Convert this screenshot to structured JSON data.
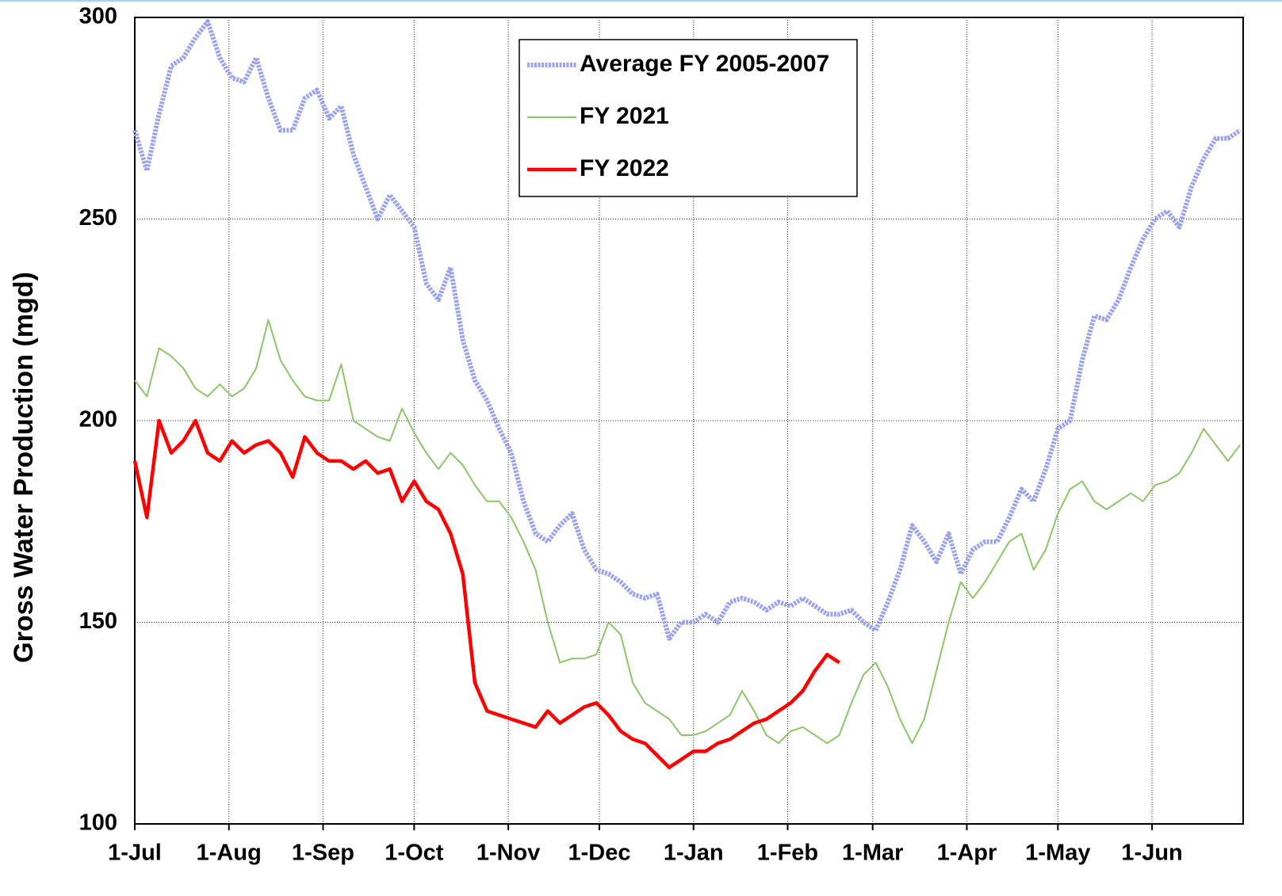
{
  "chart_data": {
    "type": "line",
    "y_label": "Gross Water Production (mgd)",
    "xlim": [
      0,
      365
    ],
    "xticks": [
      {
        "value": 0,
        "label": "1-Jul"
      },
      {
        "value": 31,
        "label": "1-Aug"
      },
      {
        "value": 62,
        "label": "1-Sep"
      },
      {
        "value": 92,
        "label": "1-Oct"
      },
      {
        "value": 123,
        "label": "1-Nov"
      },
      {
        "value": 153,
        "label": "1-Dec"
      },
      {
        "value": 184,
        "label": "1-Jan"
      },
      {
        "value": 215,
        "label": "1-Feb"
      },
      {
        "value": 243,
        "label": "1-Mar"
      },
      {
        "value": 274,
        "label": "1-Apr"
      },
      {
        "value": 304,
        "label": "1-May"
      },
      {
        "value": 335,
        "label": "1-Jun"
      }
    ],
    "ylim": [
      100,
      300
    ],
    "yticks": [
      100,
      150,
      200,
      250,
      300
    ],
    "grid": true,
    "legend": "top",
    "x": [
      0,
      4,
      8,
      12,
      16,
      20,
      24,
      28,
      32,
      36,
      40,
      44,
      48,
      52,
      56,
      60,
      64,
      68,
      72,
      76,
      80,
      84,
      88,
      92,
      96,
      100,
      104,
      108,
      112,
      116,
      120,
      124,
      128,
      132,
      136,
      140,
      144,
      148,
      152,
      156,
      160,
      164,
      168,
      172,
      176,
      180,
      184,
      188,
      192,
      196,
      200,
      204,
      208,
      212,
      216,
      220,
      224,
      228,
      232,
      236,
      240,
      244,
      248,
      252,
      256,
      260,
      264,
      268,
      272,
      276,
      280,
      284,
      288,
      292,
      296,
      300,
      304,
      308,
      312,
      316,
      320,
      324,
      328,
      332,
      336,
      340,
      344,
      348,
      352,
      356,
      360,
      364
    ],
    "series": [
      {
        "name": "Average FY 2005-2007",
        "color": "#9aa2ee",
        "values": [
          272,
          262,
          276,
          288,
          290,
          295,
          299,
          290,
          285,
          284,
          290,
          280,
          272,
          272,
          280,
          282,
          275,
          278,
          266,
          258,
          250,
          256,
          252,
          248,
          234,
          230,
          238,
          220,
          210,
          205,
          198,
          192,
          180,
          172,
          170,
          174,
          177,
          168,
          163,
          162,
          160,
          157,
          156,
          157,
          146,
          150,
          150,
          152,
          150,
          155,
          156,
          155,
          153,
          155,
          154,
          156,
          154,
          152,
          152,
          153,
          150,
          148,
          155,
          163,
          174,
          170,
          165,
          172,
          162,
          168,
          170,
          170,
          176,
          183,
          180,
          188,
          198,
          200,
          215,
          226,
          225,
          230,
          238,
          245,
          250,
          252,
          248,
          258,
          265,
          270,
          270,
          272
        ]
      },
      {
        "name": "FY 2021",
        "color": "#8ec46a",
        "values": [
          210,
          206,
          218,
          216,
          213,
          208,
          206,
          209,
          206,
          208,
          213,
          225,
          215,
          210,
          206,
          205,
          205,
          214,
          200,
          198,
          196,
          195,
          203,
          197,
          192,
          188,
          192,
          189,
          184,
          180,
          180,
          176,
          170,
          163,
          150,
          140,
          141,
          141,
          142,
          150,
          147,
          135,
          130,
          128,
          126,
          122,
          122,
          123,
          125,
          127,
          133,
          128,
          122,
          120,
          123,
          124,
          122,
          120,
          122,
          130,
          137,
          140,
          134,
          126,
          120,
          126,
          138,
          150,
          160,
          156,
          160,
          165,
          170,
          172,
          163,
          168,
          177,
          183,
          185,
          180,
          178,
          180,
          182,
          180,
          184,
          185,
          187,
          192,
          198,
          194,
          190,
          194
        ]
      },
      {
        "name": "FY 2022",
        "color": "#ff0000",
        "values": [
          190,
          176,
          200,
          192,
          195,
          200,
          192,
          190,
          195,
          192,
          194,
          195,
          192,
          186,
          196,
          192,
          190,
          190,
          188,
          190,
          187,
          188,
          180,
          185,
          180,
          178,
          172,
          162,
          135,
          128,
          127,
          126,
          125,
          124,
          128,
          125,
          127,
          129,
          130,
          127,
          123,
          121,
          120,
          117,
          114,
          116,
          118,
          118,
          120,
          121,
          123,
          125,
          126,
          128,
          130,
          133,
          138,
          142,
          140,
          null,
          null,
          null,
          null,
          null,
          null,
          null,
          null,
          null,
          null,
          null,
          null,
          null,
          null,
          null,
          null,
          null,
          null,
          null,
          null,
          null,
          null,
          null,
          null,
          null,
          null,
          null,
          null,
          null,
          null,
          null,
          null,
          null
        ]
      }
    ]
  }
}
